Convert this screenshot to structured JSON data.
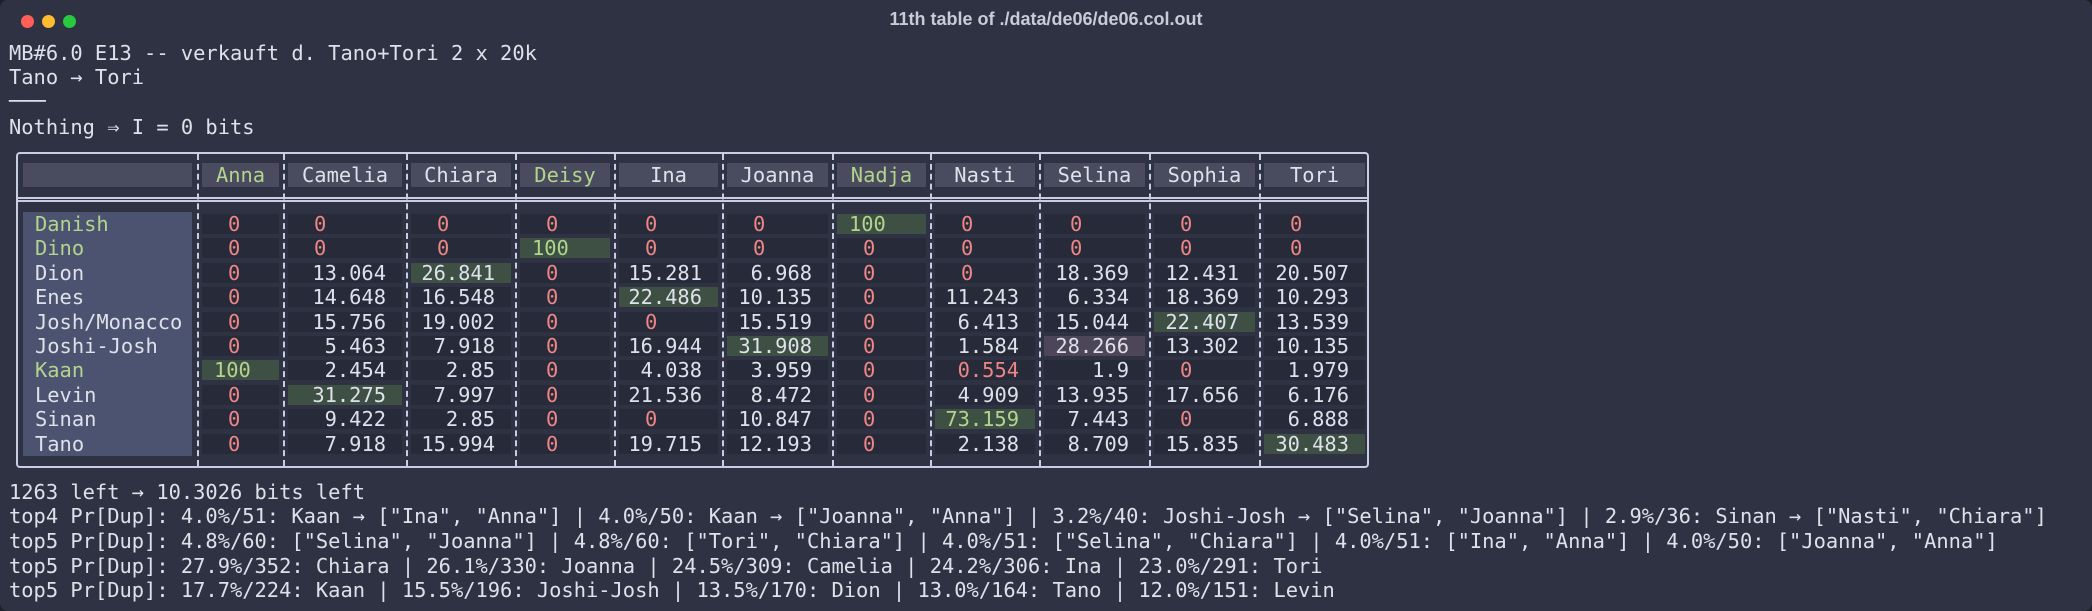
{
  "window": {
    "title": "11th table of ./data/de06/de06.col.out"
  },
  "lines": [
    "MB#6.0 E13 -- verkauft d. Tano+Tori 2 x 20k",
    "Tano → Tori",
    "───",
    "Nothing ⇒ I = 0 bits"
  ],
  "table": {
    "columns": [
      "Anna",
      "Camelia",
      "Chiara",
      "Deisy",
      "Ina",
      "Joanna",
      "Nadja",
      "Nasti",
      "Selina",
      "Sophia",
      "Tori"
    ],
    "rows": [
      {
        "label": "Danish",
        "values": [
          0,
          0,
          0,
          0,
          0,
          0,
          100,
          0,
          0,
          0,
          0
        ]
      },
      {
        "label": "Dino",
        "values": [
          0,
          0,
          0,
          100,
          0,
          0,
          0,
          0,
          0,
          0,
          0
        ]
      },
      {
        "label": "Dion",
        "values": [
          0,
          13.064,
          26.841,
          0,
          15.281,
          6.968,
          0,
          0,
          18.369,
          12.431,
          20.507
        ]
      },
      {
        "label": "Enes",
        "values": [
          0,
          14.648,
          16.548,
          0,
          22.486,
          10.135,
          0,
          11.243,
          6.334,
          18.369,
          10.293
        ]
      },
      {
        "label": "Josh/Monacco",
        "values": [
          0,
          15.756,
          19.002,
          0,
          0,
          15.519,
          0,
          6.413,
          15.044,
          22.407,
          13.539
        ]
      },
      {
        "label": "Joshi-Josh",
        "values": [
          0,
          5.463,
          7.918,
          0,
          16.944,
          31.908,
          0,
          1.584,
          28.266,
          13.302,
          10.135
        ]
      },
      {
        "label": "Kaan",
        "values": [
          100,
          2.454,
          2.85,
          0,
          4.038,
          3.959,
          0,
          0.554,
          1.9,
          0,
          1.979
        ]
      },
      {
        "label": "Levin",
        "values": [
          0,
          31.275,
          7.997,
          0,
          21.536,
          8.472,
          0,
          4.909,
          13.935,
          17.656,
          6.176
        ]
      },
      {
        "label": "Sinan",
        "values": [
          0,
          9.422,
          2.85,
          0,
          0,
          10.847,
          0,
          73.159,
          7.443,
          0,
          6.888
        ]
      },
      {
        "label": "Tano",
        "values": [
          0,
          7.918,
          15.994,
          0,
          19.715,
          12.193,
          0,
          2.138,
          8.709,
          15.835,
          30.483
        ]
      }
    ]
  },
  "footer": [
    "1263 left → 10.3026 bits left",
    "top4 Pr[Dup]: 4.0%/51: Kaan → [\"Ina\", \"Anna\"] | 4.0%/50: Kaan → [\"Joanna\", \"Anna\"] | 3.2%/40: Joshi-Josh → [\"Selina\", \"Joanna\"] | 2.9%/36: Sinan → [\"Nasti\", \"Chiara\"]",
    "top5 Pr[Dup]: 4.8%/60: [\"Selina\", \"Joanna\"] | 4.8%/60: [\"Tori\", \"Chiara\"] | 4.0%/51: [\"Selina\", \"Chiara\"] | 4.0%/51: [\"Ina\", \"Anna\"] | 4.0%/50: [\"Joanna\", \"Anna\"]",
    "top5 Pr[Dup]: 27.9%/352: Chiara | 26.1%/330: Joanna | 24.5%/309: Camelia | 24.2%/306: Ina | 23.0%/291: Tori",
    "top5 Pr[Dup]: 17.7%/224: Kaan | 15.5%/196: Joshi-Josh | 13.5%/170: Dion | 13.0%/164: Tano | 12.0%/151: Levin"
  ]
}
